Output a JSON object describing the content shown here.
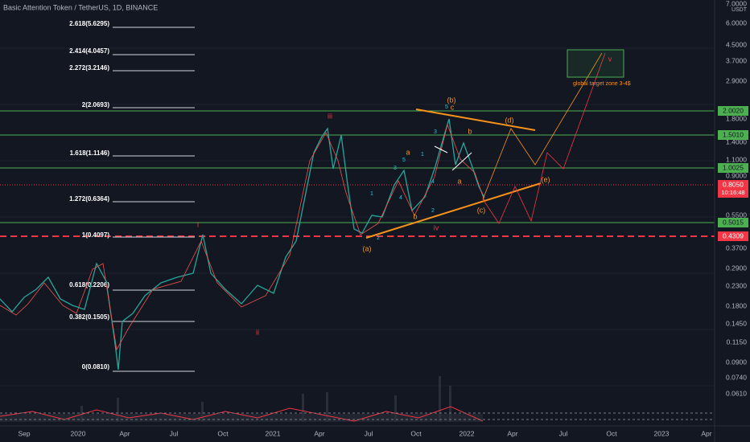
{
  "header": {
    "title": "Basic Attention Token / TetherUS, 1D, BINANCE"
  },
  "price_axis": {
    "currency": "USDT",
    "labels": [
      "7.0000",
      "6.0000",
      "4.5000",
      "3.7000",
      "2.9000",
      "1.8000",
      "1.4000",
      "1.1000",
      "0.9000",
      "0.5500",
      "0.3700",
      "0.2900",
      "0.2300",
      "0.1800",
      "0.1450",
      "0.1150",
      "0.0900",
      "0.0740",
      "0.0610"
    ]
  },
  "price_tags": {
    "green": [
      "2.0020",
      "1.5010",
      "1.0025",
      "0.5015"
    ],
    "last": "0.8050",
    "countdown": "10:16:48",
    "support": "0.4309"
  },
  "time_axis": [
    "Sep",
    "2020",
    "Apr",
    "Jul",
    "Oct",
    "2021",
    "Apr",
    "Jul",
    "Oct",
    "2022",
    "Apr",
    "Jul",
    "Oct",
    "2023",
    "Apr"
  ],
  "fib_levels": [
    "2.618(5.6295)",
    "2.414(4.0457)",
    "2.272(3.2146)",
    "2(2.0693)",
    "1.618(1.1146)",
    "1.272(0.6364)",
    "1(0.4097)",
    "0.618(0.2206)",
    "0.382(0.1505)",
    "0(0.0810)"
  ],
  "waves": {
    "major": [
      "i",
      "ii",
      "iii",
      "iv",
      "v"
    ],
    "minor": [
      "(a)",
      "(b)",
      "(c)",
      "(d)",
      "(e)"
    ],
    "sub": [
      "a",
      "b",
      "c",
      "a",
      "b"
    ],
    "circled": [
      "1",
      "2",
      "3",
      "4",
      "5",
      "1",
      "2",
      "3",
      "4",
      "5"
    ]
  },
  "annotation": "global target zone 3-4$"
}
